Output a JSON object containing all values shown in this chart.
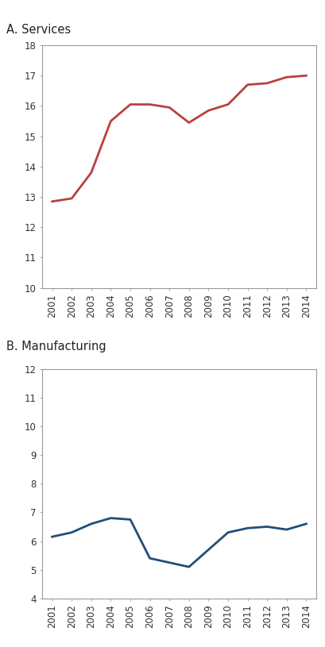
{
  "services_label": "A. Services",
  "manufacturing_label": "B. Manufacturing",
  "years": [
    2001,
    2002,
    2003,
    2004,
    2005,
    2006,
    2007,
    2008,
    2009,
    2010,
    2011,
    2012,
    2013,
    2014
  ],
  "services_values": [
    12.85,
    12.95,
    13.8,
    15.5,
    16.05,
    16.05,
    15.95,
    15.45,
    15.85,
    16.05,
    16.7,
    16.75,
    16.95,
    17.0
  ],
  "manufacturing_values": [
    6.15,
    6.3,
    6.6,
    6.8,
    6.75,
    5.4,
    5.25,
    5.1,
    5.7,
    6.3,
    6.45,
    6.5,
    6.4,
    6.6
  ],
  "services_color": "#b94040",
  "manufacturing_color": "#1f4e79",
  "services_ylim": [
    10,
    18
  ],
  "services_yticks": [
    10,
    11,
    12,
    13,
    14,
    15,
    16,
    17,
    18
  ],
  "manufacturing_ylim": [
    4,
    12
  ],
  "manufacturing_yticks": [
    4,
    5,
    6,
    7,
    8,
    9,
    10,
    11,
    12
  ],
  "background_color": "#ffffff",
  "spine_color": "#999999",
  "linewidth": 2.0,
  "label_fontsize": 10.5,
  "tick_fontsize": 8.5
}
